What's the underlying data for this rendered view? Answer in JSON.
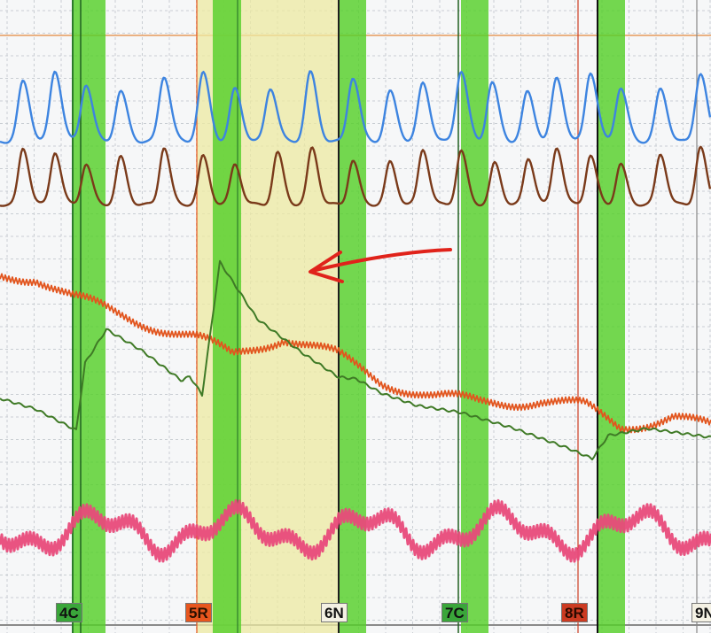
{
  "chart_data": {
    "type": "line",
    "series": [],
    "question_markers": [
      {
        "label": "4C",
        "bg": "#3aa63a",
        "fg": "#111111"
      },
      {
        "label": "5R",
        "bg": "#e8561e",
        "fg": "#2a1000"
      },
      {
        "label": "6N",
        "bg": "#f4f1e4",
        "fg": "#111111"
      },
      {
        "label": "7C",
        "bg": "#3aa63a",
        "fg": "#111111"
      },
      {
        "label": "8R",
        "bg": "#cc3b22",
        "fg": "#2a0a00"
      },
      {
        "label": "9N",
        "bg": "#f4f1e4",
        "fg": "#111111"
      }
    ],
    "colors": {
      "pneumo_upper": "#3d84e0",
      "pneumo_lower": "#7a3a1a",
      "eda": "#3f7a26",
      "cardio": "#e2551e",
      "motion": "#e84a7a",
      "response_band": "#55d02a",
      "highlight_band": "#ece9a2",
      "grid": "#c9ced3",
      "annotation_arrow": "#e0231b"
    }
  }
}
